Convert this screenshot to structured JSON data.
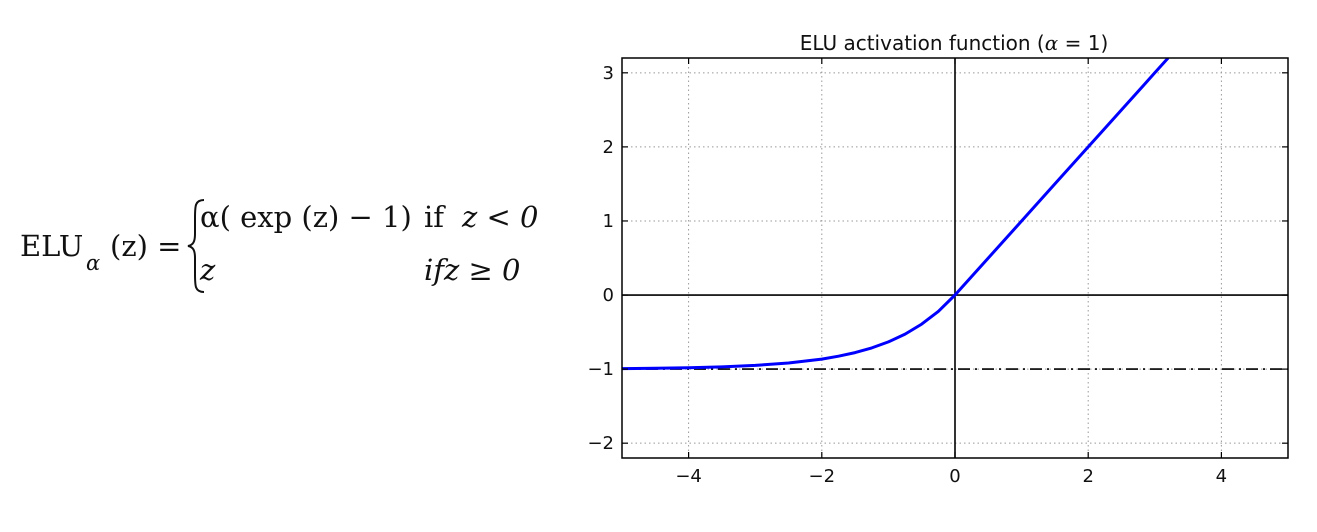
{
  "formula": {
    "lhs_name": "ELU",
    "lhs_sub": "α",
    "lhs_arg": "(z) =",
    "case1_expr": "α( exp (z) − 1)",
    "case1_cond_word": "if",
    "case1_cond_expr": "z < 0",
    "case2_expr": "z",
    "case2_cond": "ifz ≥ 0"
  },
  "chart_data": {
    "type": "line",
    "title": "ELU activation function (α = 1)",
    "title_parts": {
      "prefix": "ELU activation function (",
      "alpha": "α",
      "eq": " = ",
      "value": "1",
      "suffix": ")"
    },
    "xlabel": "",
    "ylabel": "",
    "xlim": [
      -5,
      5
    ],
    "ylim": [
      -2.2,
      3.2
    ],
    "xticks": [
      -4,
      -2,
      0,
      2,
      4
    ],
    "yticks": [
      -2,
      -1,
      0,
      1,
      2,
      3
    ],
    "xtick_labels": [
      "−4",
      "−2",
      "0",
      "2",
      "4"
    ],
    "ytick_labels": [
      "−2",
      "−1",
      "0",
      "1",
      "2",
      "3"
    ],
    "grid": true,
    "series": [
      {
        "function": "elu",
        "alpha": 1,
        "x": [
          -5,
          -4.5,
          -4,
          -3.5,
          -3,
          -2.5,
          -2,
          -1.75,
          -1.5,
          -1.25,
          -1,
          -0.75,
          -0.5,
          -0.25,
          0,
          0.5,
          1,
          1.5,
          2,
          2.5,
          3,
          3.2
        ],
        "y": [
          -0.993,
          -0.989,
          -0.982,
          -0.97,
          -0.95,
          -0.918,
          -0.865,
          -0.826,
          -0.777,
          -0.713,
          -0.632,
          -0.528,
          -0.393,
          -0.221,
          0,
          0.5,
          1,
          1.5,
          2,
          2.5,
          3,
          3.2
        ],
        "color": "#0000ff"
      }
    ],
    "reference_lines": [
      {
        "orientation": "horizontal",
        "y": 0,
        "style": "solid",
        "color": "#000000"
      },
      {
        "orientation": "vertical",
        "x": 0,
        "style": "solid",
        "color": "#000000"
      },
      {
        "orientation": "horizontal",
        "y": -1,
        "style": "dashed",
        "color": "#000000"
      }
    ]
  }
}
